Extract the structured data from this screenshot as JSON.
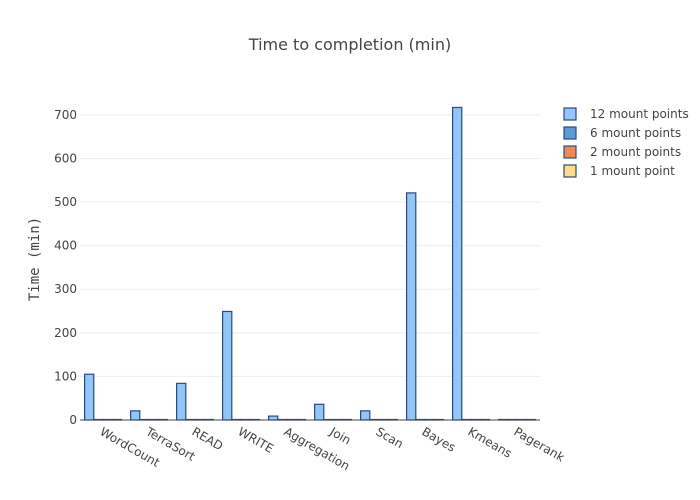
{
  "chart_data": {
    "type": "bar",
    "title": "Time to completion (min)",
    "xlabel": "",
    "ylabel": "Time (min)",
    "ylim": [
      0,
      780
    ],
    "yticks": [
      0,
      100,
      200,
      300,
      400,
      500,
      600,
      700
    ],
    "grid": true,
    "legend_position": "right",
    "categories": [
      "WordCount",
      "TerraSort",
      "READ",
      "WRITE",
      "Aggregation",
      "Join",
      "Scan",
      "Bayes",
      "Kmeans",
      "Pagerank"
    ],
    "series": [
      {
        "name": "12 mount points",
        "color": "#92c5f8",
        "values": [
          105,
          21,
          84,
          249,
          9,
          36,
          21,
          521,
          717,
          1
        ]
      },
      {
        "name": "6 mount points",
        "color": "#5b9bdc",
        "values": [
          1,
          1,
          1,
          1,
          1,
          1,
          1,
          1,
          1,
          1
        ]
      },
      {
        "name": "2 mount points",
        "color": "#ef8b52",
        "values": [
          1,
          1,
          1,
          1,
          1,
          1,
          1,
          1,
          1,
          1
        ]
      },
      {
        "name": "1 mount point",
        "color": "#fddc8a",
        "values": [
          1,
          1,
          1,
          1,
          1,
          1,
          1,
          1,
          1,
          1
        ]
      }
    ]
  }
}
